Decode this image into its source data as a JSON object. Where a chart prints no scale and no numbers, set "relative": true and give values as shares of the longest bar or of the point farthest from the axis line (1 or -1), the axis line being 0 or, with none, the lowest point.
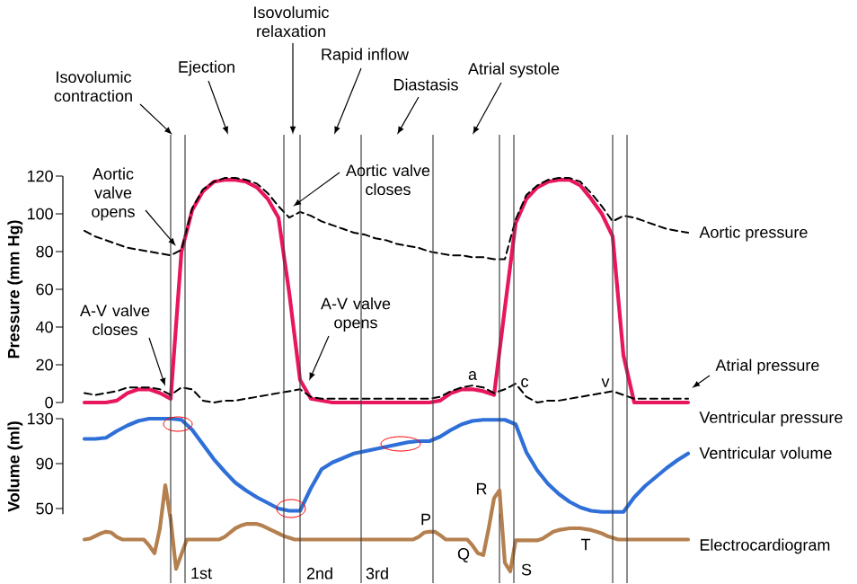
{
  "chart_data": [
    {
      "type": "line",
      "ylabel": "Pressure (mm Hg)",
      "categories": [
        null,
        null,
        null,
        null,
        null,
        null,
        null,
        null,
        null,
        null,
        null,
        null,
        null,
        null,
        null,
        null,
        null,
        null,
        null,
        null,
        null,
        null,
        null,
        null,
        null,
        null,
        null,
        null,
        null,
        null,
        null,
        null,
        null,
        null,
        null,
        null,
        null,
        null,
        null,
        null,
        null,
        null,
        null,
        null,
        null,
        null,
        null,
        null,
        null,
        null,
        null,
        null,
        null,
        null,
        null,
        null,
        null
      ],
      "ylim": [
        0,
        120
      ],
      "yticks": [
        0,
        20,
        40,
        60,
        80,
        100,
        120
      ],
      "tick_labels": "y",
      "grid": "x",
      "series": [
        {
          "name": "Ventricular pressure",
          "color": "#e8175d",
          "values": [
            0,
            0,
            0,
            1,
            5,
            7,
            7,
            5,
            2,
            80,
            102,
            112,
            117,
            118,
            118,
            117,
            114,
            108,
            98,
            58,
            12,
            2,
            1,
            0,
            0,
            0,
            0,
            0,
            0,
            0,
            0,
            0,
            0,
            1,
            5,
            7,
            7,
            6,
            4,
            50,
            95,
            108,
            114,
            117,
            118,
            118,
            115,
            108,
            100,
            88,
            25,
            0,
            0,
            0,
            0,
            0,
            0
          ]
        },
        {
          "name": "Aortic pressure",
          "color": "#000000",
          "line_style": "dashed",
          "values": [
            91,
            88,
            86,
            84,
            82,
            81,
            80,
            79,
            78,
            81,
            103,
            113,
            117,
            119,
            119,
            118,
            116,
            111,
            104,
            98,
            101,
            99,
            96,
            94,
            92,
            90,
            89,
            87,
            86,
            84,
            83,
            82,
            80,
            79,
            78,
            78,
            77,
            77,
            76,
            76,
            97,
            110,
            115,
            118,
            119,
            119,
            117,
            111,
            104,
            96,
            99,
            98,
            96,
            94,
            92,
            91,
            90
          ]
        },
        {
          "name": "Atrial pressure",
          "color": "#000000",
          "line_style": "dashed",
          "values": [
            5,
            4,
            5,
            6,
            8,
            8,
            8,
            7,
            4,
            8,
            7,
            1,
            0,
            1,
            1,
            2,
            3,
            4,
            5,
            6,
            7,
            3,
            2,
            2,
            2,
            2,
            2,
            2,
            2,
            2,
            2,
            2,
            2,
            3,
            6,
            8,
            9,
            8,
            5,
            7,
            10,
            3,
            0,
            1,
            1,
            2,
            3,
            4,
            5,
            6,
            4,
            2,
            2,
            2,
            2,
            2,
            2
          ]
        }
      ],
      "annotations": [
        "Isovolumic contraction",
        "Ejection",
        "Isovolumic relaxation",
        "Rapid inflow",
        "Diastasis",
        "Atrial systole",
        "Aortic valve opens",
        "Aortic valve closes",
        "A-V valve closes",
        "A-V valve opens",
        "a",
        "c",
        "v"
      ]
    },
    {
      "type": "line",
      "ylabel": "Volume (ml)",
      "categories": [
        null,
        null,
        null,
        null,
        null,
        null,
        null,
        null,
        null,
        null,
        null,
        null,
        null,
        null,
        null,
        null,
        null,
        null,
        null,
        null,
        null,
        null,
        null,
        null,
        null,
        null,
        null,
        null,
        null,
        null,
        null,
        null,
        null,
        null,
        null,
        null,
        null,
        null,
        null,
        null,
        null,
        null,
        null,
        null,
        null,
        null,
        null,
        null,
        null,
        null,
        null,
        null,
        null,
        null,
        null,
        null,
        null
      ],
      "ylim": [
        45,
        130
      ],
      "yticks": [
        50,
        90,
        130
      ],
      "tick_labels": "y",
      "grid": "x",
      "series": [
        {
          "name": "Ventricular volume",
          "color": "#2f6fd8",
          "values": [
            112,
            112,
            113,
            119,
            124,
            128,
            130,
            130,
            130,
            129,
            120,
            107,
            94,
            83,
            73,
            66,
            60,
            55,
            50,
            48,
            48,
            68,
            85,
            91,
            95,
            99,
            101,
            103,
            105,
            107,
            109,
            110,
            110,
            114,
            120,
            125,
            128,
            129,
            129,
            129,
            125,
            100,
            84,
            72,
            63,
            56,
            51,
            48,
            47,
            47,
            47,
            60,
            70,
            78,
            86,
            93,
            99
          ]
        }
      ]
    },
    {
      "type": "line",
      "relative": true,
      "tick_labels": false,
      "grid": "x",
      "categories": [
        null,
        null,
        null,
        null,
        null,
        null,
        null,
        null,
        null,
        null,
        null,
        null,
        null,
        null,
        null,
        null,
        null,
        null,
        null,
        null,
        null,
        null,
        null,
        null,
        null,
        null,
        null,
        null,
        null,
        null,
        null,
        null,
        null,
        null,
        null,
        null,
        null,
        null,
        null,
        null,
        null,
        null,
        null,
        null,
        null,
        null,
        null,
        null,
        null,
        null,
        null,
        null,
        null,
        null,
        null,
        null,
        null,
        null,
        null,
        null,
        null,
        null,
        null,
        null,
        null,
        null,
        null,
        null,
        null,
        null,
        null,
        null,
        null,
        null,
        null,
        null,
        null,
        null,
        null,
        null,
        null,
        null,
        null,
        null,
        null,
        null,
        null,
        null,
        null,
        null,
        null,
        null,
        null,
        null,
        null,
        null,
        null,
        null,
        null,
        null,
        null,
        null,
        null,
        null,
        null,
        null,
        null,
        null,
        null,
        null,
        null,
        null,
        null
      ],
      "series": [
        {
          "name": "Electrocardiogram",
          "color": "#b5804f",
          "values": [
            0.37,
            0.38,
            0.41,
            0.44,
            0.46,
            0.45,
            0.4,
            0.37,
            0.37,
            0.37,
            0.37,
            0.37,
            0.3,
            0.21,
            0.5,
            1,
            0.6,
            0.03,
            0.2,
            0.37,
            0.37,
            0.37,
            0.37,
            0.37,
            0.37,
            0.37,
            0.4,
            0.45,
            0.5,
            0.53,
            0.55,
            0.55,
            0.55,
            0.53,
            0.5,
            0.47,
            0.44,
            0.41,
            0.39,
            0.37,
            0.37,
            0.37,
            0.37,
            0.37,
            0.37,
            0.37,
            0.37,
            0.37,
            0.37,
            0.37,
            0.37,
            0.37,
            0.37,
            0.37,
            0.37,
            0.37,
            0.37,
            0.37,
            0.37,
            0.37,
            0.37,
            0.37,
            0.4,
            0.45,
            0.46,
            0.46,
            0.42,
            0.37,
            0.37,
            0.37,
            0.37,
            0.37,
            0.3,
            0.21,
            0.19,
            0.5,
            0.85,
            0.94,
            0.1,
            0,
            0.36,
            0.36,
            0.36,
            0.36,
            0.36,
            0.38,
            0.42,
            0.46,
            0.48,
            0.49,
            0.5,
            0.5,
            0.5,
            0.49,
            0.48,
            0.46,
            0.44,
            0.41,
            0.39,
            0.37,
            0.37,
            0.37,
            0.37,
            0.37,
            0.37,
            0.37,
            0.37,
            0.37,
            0.37,
            0.37,
            0.37,
            0.37,
            0.37
          ]
        }
      ],
      "annotations": [
        "1st",
        "2nd",
        "3rd",
        "P",
        "Q",
        "R",
        "S",
        "T"
      ]
    }
  ]
}
